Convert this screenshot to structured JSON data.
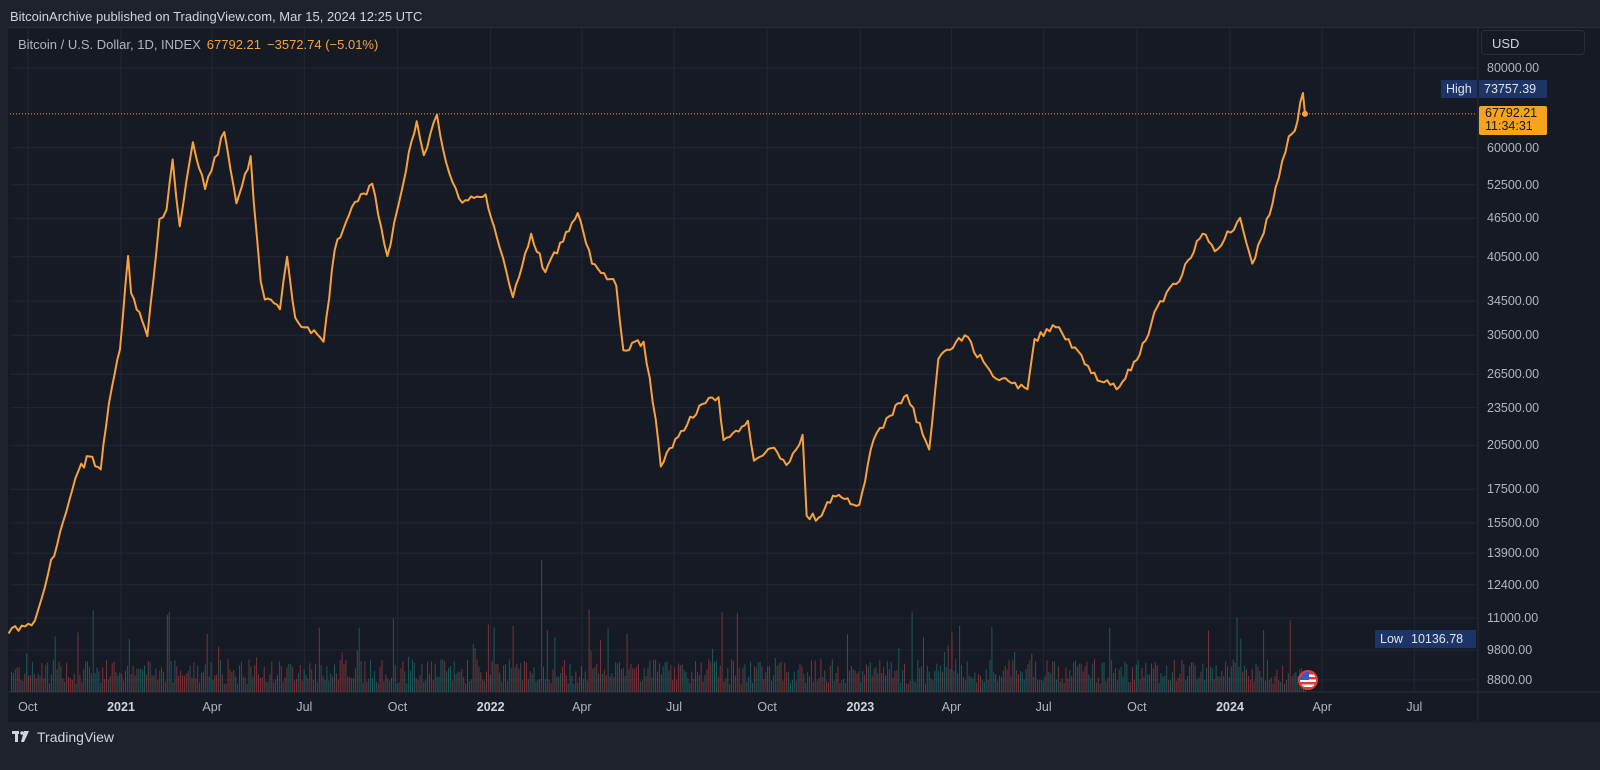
{
  "publisher_line": "BitcoinArchive published on TradingView.com, Mar 15, 2024 12:25 UTC",
  "legend": {
    "symbol": "Bitcoin / U.S. Dollar, 1D, INDEX",
    "price": "67792.21",
    "change": "−3572.74 (−5.01%)"
  },
  "currency_button": "USD",
  "high_label": {
    "label": "High",
    "value": "73757.39"
  },
  "low_label": {
    "label": "Low",
    "value": "10136.78"
  },
  "last_price": {
    "value": "67792.21",
    "countdown": "11:34:31"
  },
  "footer_brand": "TradingView",
  "colors": {
    "line": "#f7a23b",
    "background": "#161a25",
    "grid": "#232733",
    "volume_up": "#26a69a",
    "volume_down": "#ef5350",
    "label_bg": "#1c3466"
  },
  "chart_data": {
    "type": "line",
    "scale": "log",
    "grid": true,
    "ylim": [
      8500,
      82000
    ],
    "yticks": [
      "80000.00",
      "60000.00",
      "52500.00",
      "46500.00",
      "40500.00",
      "34500.00",
      "30500.00",
      "26500.00",
      "23500.00",
      "20500.00",
      "17500.00",
      "15500.00",
      "13900.00",
      "12400.00",
      "11000.00",
      "9800.00",
      "8800.00"
    ],
    "xticks": [
      {
        "label": "Oct",
        "date": "2020-10-01",
        "year": false
      },
      {
        "label": "2021",
        "date": "2021-01-01",
        "year": true
      },
      {
        "label": "Apr",
        "date": "2021-04-01",
        "year": false
      },
      {
        "label": "Jul",
        "date": "2021-07-01",
        "year": false
      },
      {
        "label": "Oct",
        "date": "2021-10-01",
        "year": false
      },
      {
        "label": "2022",
        "date": "2022-01-01",
        "year": true
      },
      {
        "label": "Apr",
        "date": "2022-04-01",
        "year": false
      },
      {
        "label": "Jul",
        "date": "2022-07-01",
        "year": false
      },
      {
        "label": "Oct",
        "date": "2022-10-01",
        "year": false
      },
      {
        "label": "2023",
        "date": "2023-01-01",
        "year": true
      },
      {
        "label": "Apr",
        "date": "2023-04-01",
        "year": false
      },
      {
        "label": "Jul",
        "date": "2023-07-01",
        "year": false
      },
      {
        "label": "Oct",
        "date": "2023-10-01",
        "year": false
      },
      {
        "label": "2024",
        "date": "2024-01-01",
        "year": true
      },
      {
        "label": "Apr",
        "date": "2024-04-01",
        "year": false
      },
      {
        "label": "Jul",
        "date": "2024-07-01",
        "year": false
      }
    ],
    "series": [
      {
        "points": [
          [
            "2020-09-12",
            10400
          ],
          [
            "2020-09-25",
            10700
          ],
          [
            "2020-10-08",
            10900
          ],
          [
            "2020-10-21",
            12900
          ],
          [
            "2020-11-05",
            15600
          ],
          [
            "2020-11-20",
            18700
          ],
          [
            "2020-12-01",
            19700
          ],
          [
            "2020-12-12",
            18800
          ],
          [
            "2020-12-20",
            23800
          ],
          [
            "2020-12-31",
            29000
          ],
          [
            "2021-01-08",
            40600
          ],
          [
            "2021-01-11",
            35500
          ],
          [
            "2021-01-22",
            32100
          ],
          [
            "2021-01-27",
            30400
          ],
          [
            "2021-02-08",
            46400
          ],
          [
            "2021-02-15",
            48000
          ],
          [
            "2021-02-21",
            57500
          ],
          [
            "2021-02-28",
            45200
          ],
          [
            "2021-03-13",
            61200
          ],
          [
            "2021-03-25",
            51700
          ],
          [
            "2021-04-13",
            63500
          ],
          [
            "2021-04-25",
            49100
          ],
          [
            "2021-05-09",
            58200
          ],
          [
            "2021-05-12",
            49500
          ],
          [
            "2021-05-19",
            37000
          ],
          [
            "2021-05-23",
            34700
          ],
          [
            "2021-06-07",
            33500
          ],
          [
            "2021-06-14",
            40500
          ],
          [
            "2021-06-22",
            32500
          ],
          [
            "2021-07-20",
            29800
          ],
          [
            "2021-07-31",
            41500
          ],
          [
            "2021-08-14",
            47000
          ],
          [
            "2021-08-23",
            49500
          ],
          [
            "2021-09-06",
            52700
          ],
          [
            "2021-09-21",
            40600
          ],
          [
            "2021-10-01",
            48100
          ],
          [
            "2021-10-15",
            61500
          ],
          [
            "2021-10-20",
            66000
          ],
          [
            "2021-10-27",
            58400
          ],
          [
            "2021-11-09",
            67600
          ],
          [
            "2021-11-18",
            56900
          ],
          [
            "2021-12-04",
            49200
          ],
          [
            "2021-12-27",
            50700
          ],
          [
            "2022-01-10",
            41800
          ],
          [
            "2022-01-23",
            35000
          ],
          [
            "2022-02-10",
            44000
          ],
          [
            "2022-02-24",
            38300
          ],
          [
            "2022-03-28",
            47400
          ],
          [
            "2022-04-11",
            39500
          ],
          [
            "2022-05-05",
            36500
          ],
          [
            "2022-05-12",
            28900
          ],
          [
            "2022-06-01",
            29800
          ],
          [
            "2022-06-13",
            22500
          ],
          [
            "2022-06-18",
            19000
          ],
          [
            "2022-07-08",
            21600
          ],
          [
            "2022-07-29",
            23800
          ],
          [
            "2022-08-14",
            24400
          ],
          [
            "2022-08-19",
            20900
          ],
          [
            "2022-09-12",
            22400
          ],
          [
            "2022-09-18",
            19400
          ],
          [
            "2022-10-05",
            20300
          ],
          [
            "2022-10-20",
            19100
          ],
          [
            "2022-11-05",
            21300
          ],
          [
            "2022-11-09",
            15900
          ],
          [
            "2022-11-21",
            15800
          ],
          [
            "2022-12-05",
            17100
          ],
          [
            "2022-12-31",
            16550
          ],
          [
            "2023-01-14",
            20900
          ],
          [
            "2023-01-30",
            22800
          ],
          [
            "2023-02-16",
            24600
          ],
          [
            "2023-03-10",
            20200
          ],
          [
            "2023-03-19",
            28000
          ],
          [
            "2023-04-14",
            30500
          ],
          [
            "2023-05-12",
            26300
          ],
          [
            "2023-06-15",
            25100
          ],
          [
            "2023-06-22",
            30100
          ],
          [
            "2023-07-13",
            31400
          ],
          [
            "2023-08-01",
            29200
          ],
          [
            "2023-08-17",
            26600
          ],
          [
            "2023-09-11",
            25100
          ],
          [
            "2023-10-01",
            27900
          ],
          [
            "2023-10-24",
            34500
          ],
          [
            "2023-11-09",
            36700
          ],
          [
            "2023-12-05",
            44000
          ],
          [
            "2023-12-17",
            41300
          ],
          [
            "2024-01-11",
            46600
          ],
          [
            "2024-01-23",
            39500
          ],
          [
            "2024-02-09",
            47100
          ],
          [
            "2024-02-15",
            52000
          ],
          [
            "2024-02-28",
            62500
          ],
          [
            "2024-03-05",
            63800
          ],
          [
            "2024-03-13",
            73100
          ],
          [
            "2024-03-15",
            67792.21
          ]
        ]
      }
    ]
  }
}
